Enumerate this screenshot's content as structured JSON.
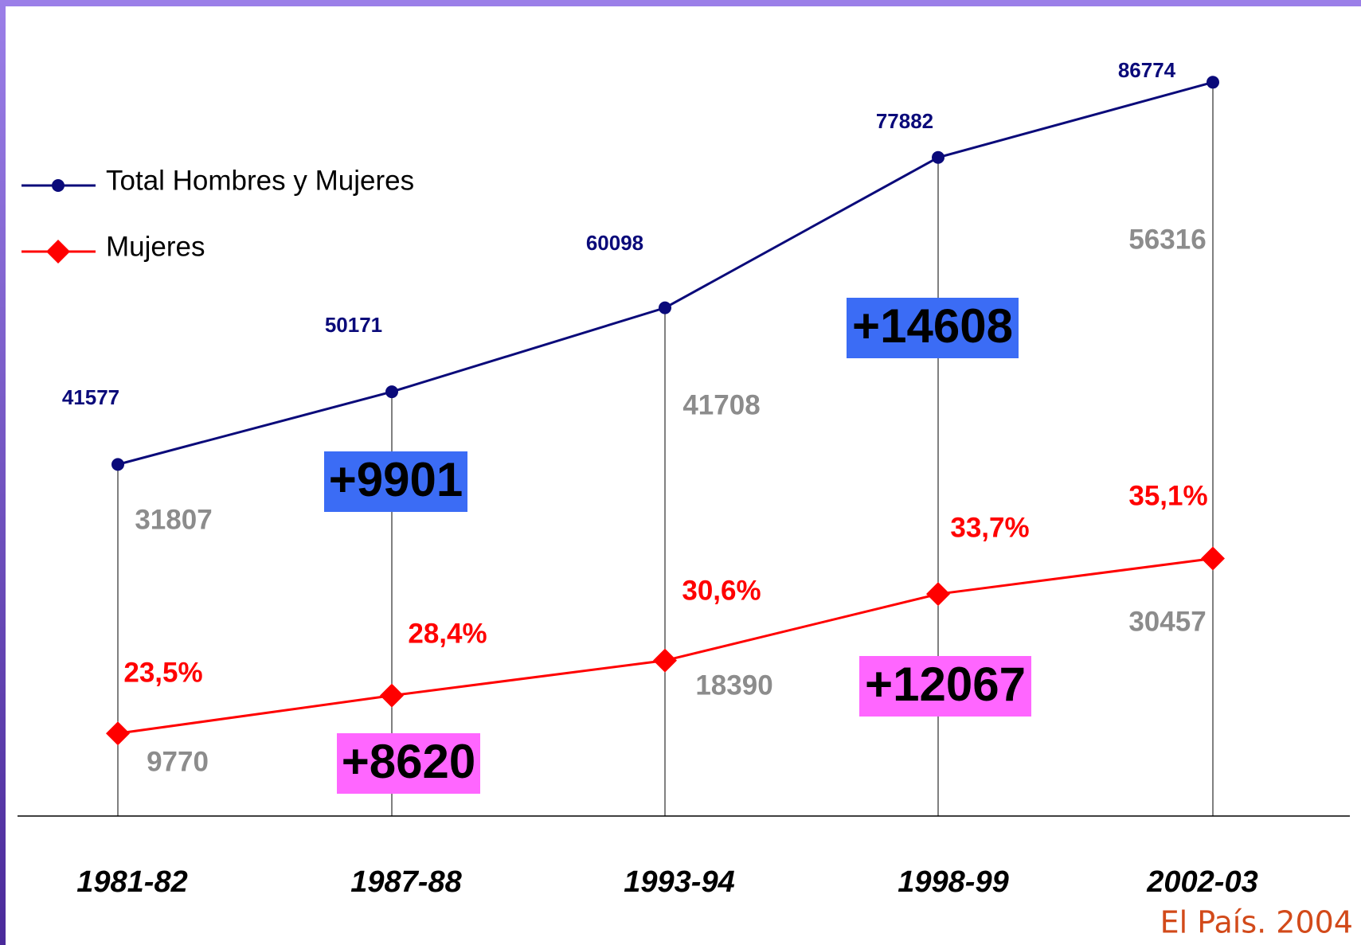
{
  "chart_data": {
    "type": "line",
    "categories": [
      "1981-82",
      "1987-88",
      "1993-94",
      "1998-99",
      "2002-03"
    ],
    "series": [
      {
        "name": "Total Hombres y Mujeres",
        "color": "#0a0a7a",
        "marker": "circle",
        "values": [
          41577,
          50171,
          60098,
          77882,
          86774
        ]
      },
      {
        "name": "Mujeres",
        "color": "#ff0000",
        "marker": "diamond",
        "values": [
          9770,
          14250,
          18390,
          26250,
          30457
        ],
        "share_labels": [
          "23,5%",
          "28,4%",
          "30,6%",
          "33,7%",
          "35,1%"
        ]
      }
    ],
    "ylim": [
      0,
      96500
    ],
    "annotations": [
      "31807",
      "41708",
      "56316"
    ],
    "increments": [
      {
        "text": "+9901",
        "color": "#3b6cf5"
      },
      {
        "text": "+8620",
        "color": "#ff66ff"
      },
      {
        "text": "+14608",
        "color": "#3b6cf5"
      },
      {
        "text": "+12067",
        "color": "#ff66ff"
      }
    ],
    "source": "El País. 2004"
  }
}
